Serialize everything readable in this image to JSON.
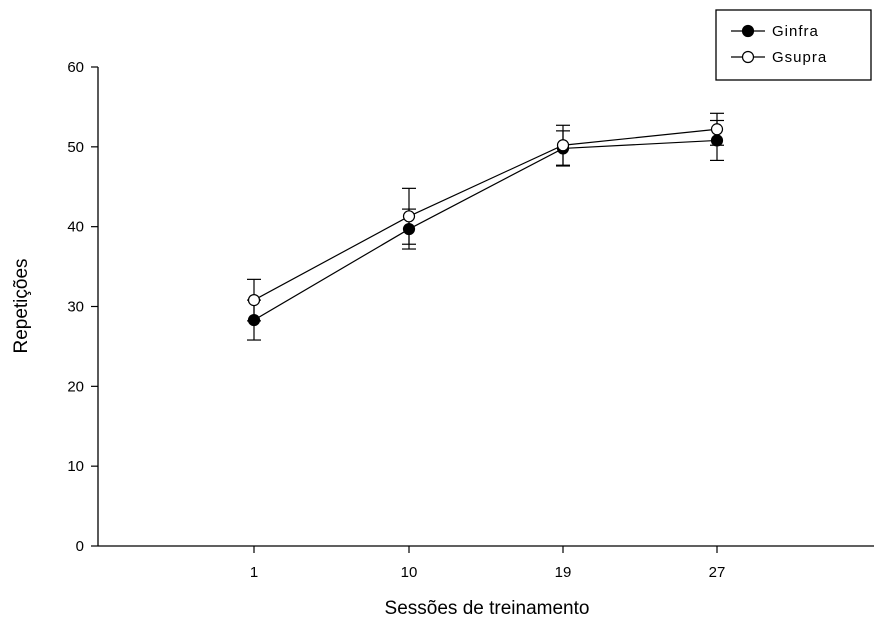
{
  "chart_data": {
    "type": "line",
    "xlabel": "Sessões de treinamento",
    "ylabel": "Repetições",
    "categories": [
      "1",
      "10",
      "19",
      "27"
    ],
    "ylim": [
      0,
      60
    ],
    "yticks": [
      "0",
      "10",
      "20",
      "30",
      "40",
      "50",
      "60"
    ],
    "grid": false,
    "legend_position": "top-right",
    "series": [
      {
        "name": "Ginfra",
        "marker": "filled-circle",
        "color": "#000000",
        "values": [
          28.3,
          39.7,
          49.8,
          50.8
        ],
        "error": [
          2.5,
          2.5,
          2.2,
          2.5
        ]
      },
      {
        "name": "Gsupra",
        "marker": "open-circle",
        "color": "#000000",
        "values": [
          30.8,
          41.3,
          50.2,
          52.2
        ],
        "error": [
          2.6,
          3.5,
          2.5,
          2.0
        ]
      }
    ]
  }
}
